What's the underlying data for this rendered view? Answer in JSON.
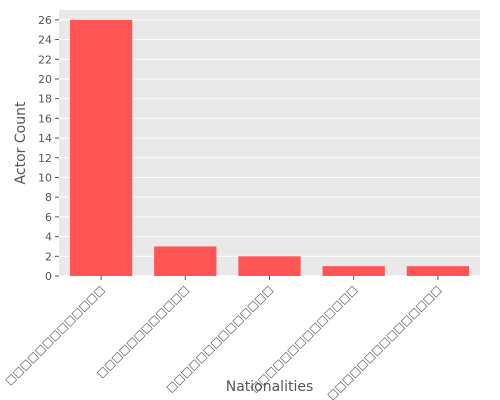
{
  "chart_data": {
    "type": "bar",
    "title": "",
    "xlabel": "Nationalities",
    "ylabel": "Actor Count",
    "categories": [
      "□□□□□□□□□□□□□",
      "□□□□□□□□□□□□",
      "□□□□□□□□□□□□□□",
      "□□□□□□□□□□□□□□",
      "□□□□□□□□□□□□□□□"
    ],
    "values": [
      26,
      3,
      2,
      1,
      1
    ],
    "ylim": [
      0,
      27
    ],
    "yticks": [
      0,
      2,
      4,
      6,
      8,
      10,
      12,
      14,
      16,
      18,
      20,
      22,
      24,
      26
    ],
    "grid": true,
    "bar_color": "#ff5555",
    "background_color": "#e9e9e9",
    "grid_color": "#ffffff"
  }
}
